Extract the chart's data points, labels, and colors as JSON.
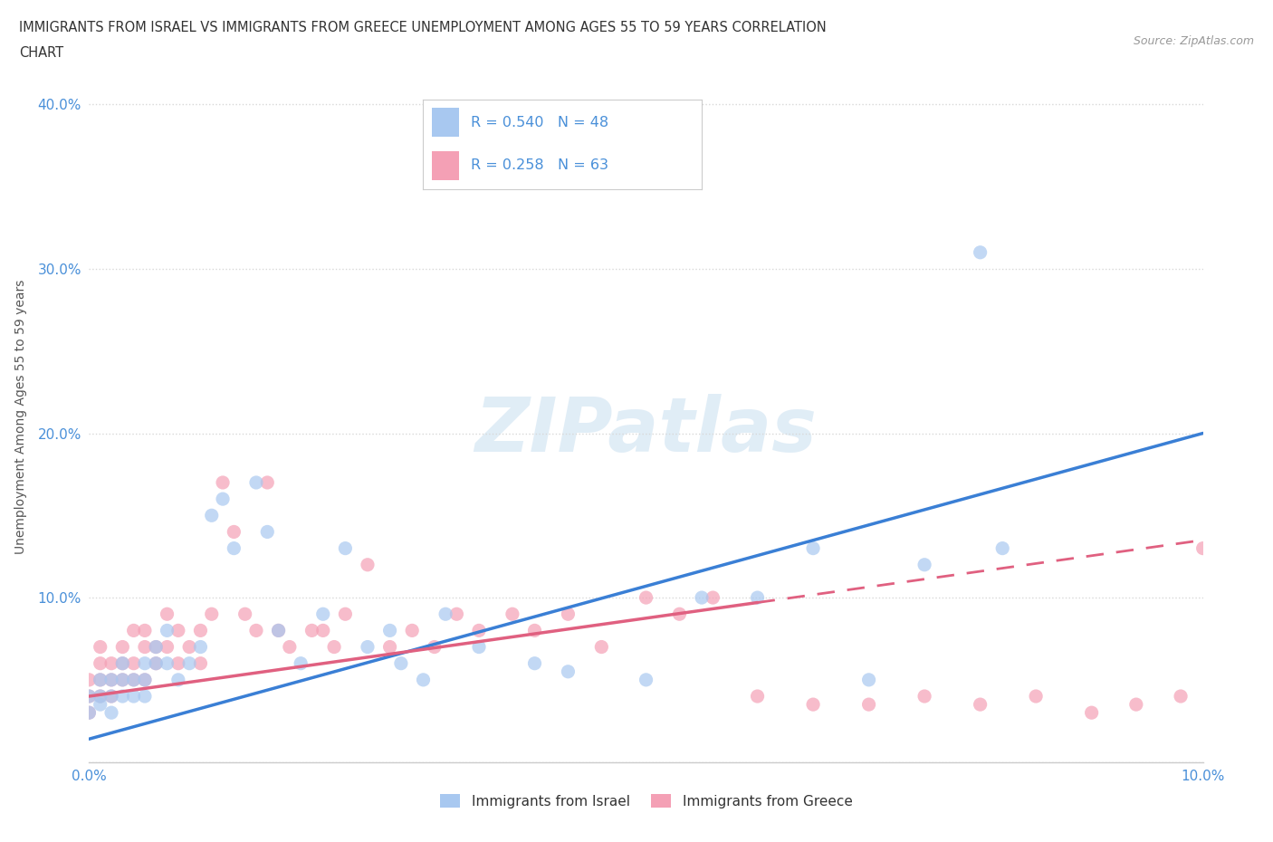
{
  "title_line1": "IMMIGRANTS FROM ISRAEL VS IMMIGRANTS FROM GREECE UNEMPLOYMENT AMONG AGES 55 TO 59 YEARS CORRELATION",
  "title_line2": "CHART",
  "source_text": "Source: ZipAtlas.com",
  "ylabel": "Unemployment Among Ages 55 to 59 years",
  "xlim": [
    0.0,
    0.1
  ],
  "ylim": [
    0.0,
    0.42
  ],
  "israel_R": 0.54,
  "israel_N": 48,
  "greece_R": 0.258,
  "greece_N": 63,
  "israel_color": "#a8c8f0",
  "greece_color": "#f4a0b5",
  "israel_line_color": "#3a7fd5",
  "greece_line_color": "#e06080",
  "legend_label_israel": "Immigrants from Israel",
  "legend_label_greece": "Immigrants from Greece",
  "israel_scatter_x": [
    0.0,
    0.0,
    0.001,
    0.001,
    0.001,
    0.002,
    0.002,
    0.002,
    0.003,
    0.003,
    0.003,
    0.004,
    0.004,
    0.005,
    0.005,
    0.005,
    0.006,
    0.006,
    0.007,
    0.007,
    0.008,
    0.009,
    0.01,
    0.011,
    0.012,
    0.013,
    0.015,
    0.016,
    0.017,
    0.019,
    0.021,
    0.023,
    0.025,
    0.027,
    0.028,
    0.03,
    0.032,
    0.035,
    0.04,
    0.043,
    0.05,
    0.055,
    0.06,
    0.065,
    0.07,
    0.075,
    0.08,
    0.082
  ],
  "israel_scatter_y": [
    0.03,
    0.04,
    0.035,
    0.04,
    0.05,
    0.03,
    0.04,
    0.05,
    0.04,
    0.05,
    0.06,
    0.04,
    0.05,
    0.04,
    0.05,
    0.06,
    0.06,
    0.07,
    0.06,
    0.08,
    0.05,
    0.06,
    0.07,
    0.15,
    0.16,
    0.13,
    0.17,
    0.14,
    0.08,
    0.06,
    0.09,
    0.13,
    0.07,
    0.08,
    0.06,
    0.05,
    0.09,
    0.07,
    0.06,
    0.055,
    0.05,
    0.1,
    0.1,
    0.13,
    0.05,
    0.12,
    0.31,
    0.13
  ],
  "greece_scatter_x": [
    0.0,
    0.0,
    0.0,
    0.001,
    0.001,
    0.001,
    0.001,
    0.002,
    0.002,
    0.002,
    0.003,
    0.003,
    0.003,
    0.004,
    0.004,
    0.004,
    0.005,
    0.005,
    0.005,
    0.006,
    0.006,
    0.007,
    0.007,
    0.008,
    0.008,
    0.009,
    0.01,
    0.01,
    0.011,
    0.012,
    0.013,
    0.014,
    0.015,
    0.016,
    0.017,
    0.018,
    0.02,
    0.021,
    0.022,
    0.023,
    0.025,
    0.027,
    0.029,
    0.031,
    0.033,
    0.035,
    0.038,
    0.04,
    0.043,
    0.046,
    0.05,
    0.053,
    0.056,
    0.06,
    0.065,
    0.07,
    0.075,
    0.08,
    0.085,
    0.09,
    0.094,
    0.098,
    0.1
  ],
  "greece_scatter_y": [
    0.03,
    0.04,
    0.05,
    0.04,
    0.05,
    0.06,
    0.07,
    0.04,
    0.05,
    0.06,
    0.05,
    0.06,
    0.07,
    0.05,
    0.06,
    0.08,
    0.05,
    0.07,
    0.08,
    0.06,
    0.07,
    0.07,
    0.09,
    0.06,
    0.08,
    0.07,
    0.06,
    0.08,
    0.09,
    0.17,
    0.14,
    0.09,
    0.08,
    0.17,
    0.08,
    0.07,
    0.08,
    0.08,
    0.07,
    0.09,
    0.12,
    0.07,
    0.08,
    0.07,
    0.09,
    0.08,
    0.09,
    0.08,
    0.09,
    0.07,
    0.1,
    0.09,
    0.1,
    0.04,
    0.035,
    0.035,
    0.04,
    0.035,
    0.04,
    0.03,
    0.035,
    0.04,
    0.13
  ],
  "background_color": "#ffffff",
  "grid_color": "#d8d8d8",
  "title_color": "#333333",
  "axis_label_color": "#555555",
  "tick_label_color": "#4a90d9",
  "israel_trend_x0": 0.0,
  "israel_trend_y0": 0.014,
  "israel_trend_x1": 0.1,
  "israel_trend_y1": 0.2,
  "greece_trend_x0": 0.0,
  "greece_trend_y0": 0.04,
  "greece_trend_x1": 0.1,
  "greece_trend_y1": 0.135
}
